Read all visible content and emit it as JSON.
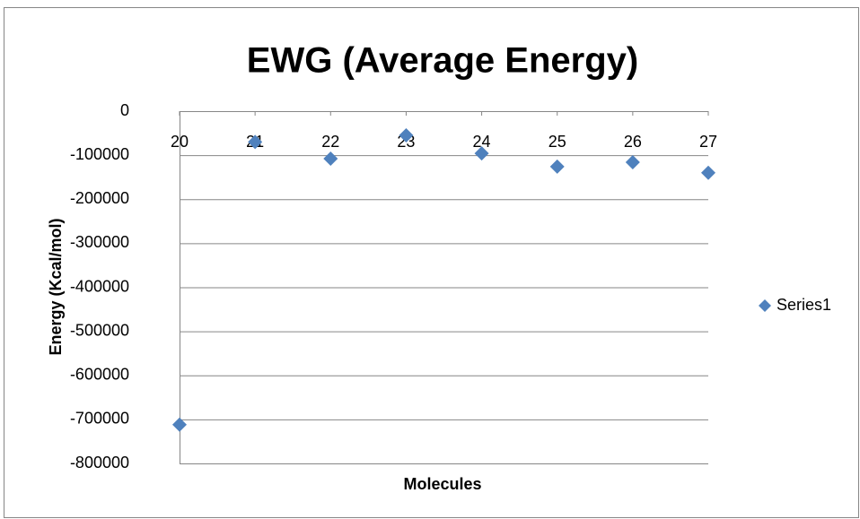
{
  "chart_data": {
    "type": "scatter",
    "title": "EWG (Average Energy)",
    "x_label": "Molecules",
    "y_label": "Energy (Kcal/mol)",
    "series": [
      {
        "name": "Series1",
        "color": "#4f81bd",
        "x": [
          20,
          21,
          22,
          23,
          24,
          25,
          26,
          27
        ],
        "values": [
          -712000,
          -70000,
          -108000,
          -55000,
          -96000,
          -126000,
          -116000,
          -140000
        ]
      }
    ],
    "xlim": [
      20,
      27
    ],
    "xticks": [
      20,
      21,
      22,
      23,
      24,
      25,
      26,
      27
    ],
    "ylim": [
      -800000,
      0
    ],
    "yticks": [
      0,
      -100000,
      -200000,
      -300000,
      -400000,
      -500000,
      -600000,
      -700000,
      -800000
    ],
    "grid": true,
    "legend": "right"
  }
}
